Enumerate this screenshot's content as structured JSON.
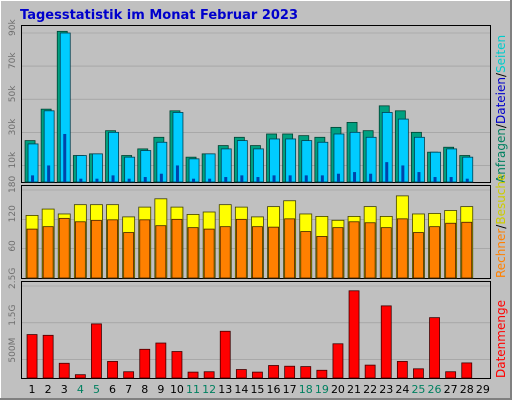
{
  "title": "Tagesstatistik im Monat Februar 2023",
  "colors": {
    "background": "#c0c0c0",
    "title": "#0000cc",
    "anfragen": "#00cccc",
    "anfragen_dark": "#008060",
    "dateien": "#00ccff",
    "seiten": "#00ccff",
    "besuche": "#ffff00",
    "rechner": "#ff8000",
    "datenmenge": "#ff0000"
  },
  "right_labels": {
    "panel1": [
      {
        "text": "Anfragen",
        "color": "#008060"
      },
      {
        "text": "/",
        "color": "#000000"
      },
      {
        "text": "Dateien",
        "color": "#0000cc"
      },
      {
        "text": "/",
        "color": "#000000"
      },
      {
        "text": "Seiten",
        "color": "#00cccc"
      }
    ],
    "panel2": [
      {
        "text": "Rechner",
        "color": "#ff8000"
      },
      {
        "text": "/",
        "color": "#000000"
      },
      {
        "text": "Besuche",
        "color": "#cccc00"
      }
    ],
    "panel3": [
      {
        "text": "Datenmenge",
        "color": "#ff0000"
      }
    ]
  },
  "chart_data": [
    {
      "type": "bar",
      "title": "Tagesstatistik im Monat Februar 2023",
      "categories": [
        "1",
        "2",
        "3",
        "4",
        "5",
        "6",
        "7",
        "8",
        "9",
        "10",
        "11",
        "12",
        "13",
        "14",
        "15",
        "16",
        "17",
        "18",
        "19",
        "20",
        "21",
        "22",
        "23",
        "24",
        "25",
        "26",
        "27",
        "28",
        "29"
      ],
      "weekend_days": [
        "4",
        "5",
        "11",
        "12",
        "18",
        "19",
        "25",
        "26"
      ],
      "ytick_labels": [
        "10k",
        "30k",
        "50k",
        "70k",
        "90k"
      ],
      "ylim": [
        0,
        90000
      ],
      "series": [
        {
          "name": "Anfragen",
          "values": [
            25000,
            44000,
            91000,
            16000,
            17000,
            31000,
            16000,
            20000,
            27000,
            43000,
            15000,
            17000,
            22000,
            27000,
            22000,
            29000,
            29000,
            28000,
            27000,
            33000,
            36000,
            31000,
            46000,
            43000,
            30000,
            18000,
            21000,
            16000,
            0
          ]
        },
        {
          "name": "Dateien",
          "values": [
            23000,
            43000,
            90000,
            16000,
            17000,
            30000,
            15000,
            19000,
            24000,
            42000,
            14000,
            17000,
            20000,
            25000,
            20000,
            26000,
            26000,
            25000,
            24000,
            29000,
            30000,
            27000,
            42000,
            38000,
            27000,
            18000,
            20000,
            15000,
            0
          ]
        },
        {
          "name": "Seiten",
          "values": [
            4000,
            10000,
            29000,
            2000,
            2000,
            4000,
            2000,
            3000,
            5000,
            10000,
            2000,
            2000,
            3000,
            4000,
            3000,
            4000,
            4000,
            4000,
            4000,
            5000,
            6000,
            5000,
            12000,
            10000,
            6000,
            3000,
            3000,
            2000,
            0
          ]
        }
      ]
    },
    {
      "type": "bar",
      "categories": [
        "1",
        "2",
        "3",
        "4",
        "5",
        "6",
        "7",
        "8",
        "9",
        "10",
        "11",
        "12",
        "13",
        "14",
        "15",
        "16",
        "17",
        "18",
        "19",
        "20",
        "21",
        "22",
        "23",
        "24",
        "25",
        "26",
        "27",
        "28",
        "29"
      ],
      "ytick_labels": [
        "60",
        "120",
        "180"
      ],
      "ylim": [
        0,
        180
      ],
      "series": [
        {
          "name": "Besuche",
          "values": [
            128,
            141,
            131,
            150,
            150,
            150,
            125,
            145,
            162,
            145,
            130,
            135,
            150,
            145,
            125,
            146,
            158,
            131,
            126,
            118,
            126,
            146,
            126,
            168,
            131,
            132,
            138,
            146,
            0
          ]
        },
        {
          "name": "Rechner",
          "values": [
            100,
            105,
            122,
            115,
            118,
            119,
            93,
            119,
            107,
            120,
            103,
            100,
            105,
            120,
            105,
            104,
            121,
            95,
            85,
            103,
            115,
            113,
            103,
            121,
            93,
            105,
            112,
            114,
            0
          ]
        }
      ]
    },
    {
      "type": "bar",
      "categories": [
        "1",
        "2",
        "3",
        "4",
        "5",
        "6",
        "7",
        "8",
        "9",
        "10",
        "11",
        "12",
        "13",
        "14",
        "15",
        "16",
        "17",
        "18",
        "19",
        "20",
        "21",
        "22",
        "23",
        "24",
        "25",
        "26",
        "27",
        "28",
        "29"
      ],
      "ytick_labels": [
        "500M",
        "1.5G",
        "2.5G"
      ],
      "ylim": [
        0,
        2500
      ],
      "series": [
        {
          "name": "Datenmenge",
          "values": [
            1180,
            1160,
            400,
            90,
            1470,
            450,
            170,
            780,
            950,
            720,
            160,
            170,
            1270,
            230,
            160,
            340,
            320,
            310,
            210,
            930,
            2370,
            350,
            1960,
            450,
            250,
            1640,
            170,
            410,
            0
          ]
        }
      ]
    }
  ]
}
